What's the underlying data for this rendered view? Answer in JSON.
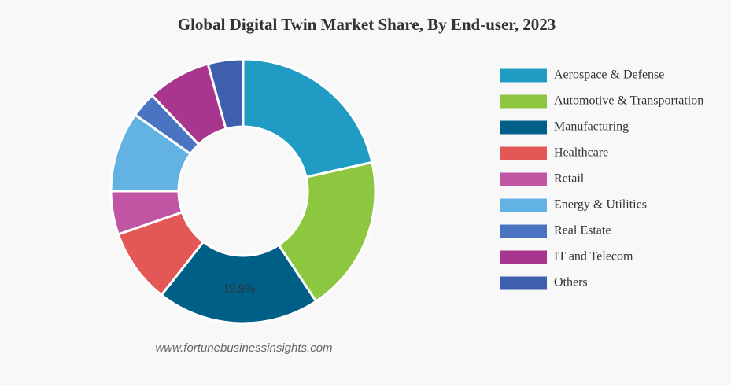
{
  "chart_data": {
    "type": "donut",
    "title": "Global Digital Twin Market Share, By End-user, 2023",
    "categories": [
      "Aerospace & Defense",
      "Automotive & Transportation",
      "Manufacturing",
      "Healthcare",
      "Retail",
      "Energy & Utilities",
      "Real Estate",
      "IT and Telecom",
      "Others"
    ],
    "values": [
      21.5,
      19.2,
      19.9,
      9.1,
      5.3,
      9.8,
      3.1,
      7.8,
      4.3
    ],
    "value_labels": [
      null,
      null,
      "19.9%",
      null,
      null,
      null,
      null,
      null,
      null
    ],
    "colors": [
      "#1f9bc4",
      "#8dc63f",
      "#005f87",
      "#e35757",
      "#c055a4",
      "#62b3e3",
      "#4a74c1",
      "#a8368e",
      "#3e5fae"
    ],
    "legend": "right",
    "source": "www.fortunebusinessinsights.com"
  }
}
